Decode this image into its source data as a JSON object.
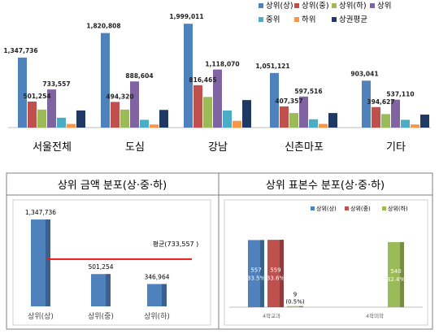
{
  "chart_data": [
    {
      "type": "bar",
      "categories": [
        "서울전체",
        "도심",
        "강남",
        "신촌마포",
        "기타"
      ],
      "series": [
        {
          "name": "상위(상)",
          "color": "#4F81BD",
          "values": [
            1347736,
            1820808,
            1999011,
            1051121,
            903041
          ]
        },
        {
          "name": "상위(중)",
          "color": "#C0504D",
          "values": [
            501254,
            494320,
            816465,
            407357,
            394627
          ]
        },
        {
          "name": "상위(하)",
          "color": "#9BBB59",
          "values": [
            346964,
            346964,
            590000,
            280000,
            260000
          ]
        },
        {
          "name": "상위",
          "color": "#8064A2",
          "values": [
            733557,
            888604,
            1118070,
            597516,
            537110
          ]
        },
        {
          "name": "중위",
          "color": "#4BACC6",
          "values": [
            190000,
            150000,
            330000,
            160000,
            150000
          ]
        },
        {
          "name": "하위",
          "color": "#F79646",
          "values": [
            70000,
            60000,
            130000,
            70000,
            60000
          ]
        },
        {
          "name": "상권평균",
          "color": "#1F3864",
          "values": [
            330000,
            340000,
            530000,
            280000,
            250000
          ]
        }
      ],
      "data_labels": {
        "상위(상)": [
          "1,347,736",
          "1,820,808",
          "1,999,011",
          "1,051,121",
          "903,041"
        ],
        "상위(중)": [
          "501,254",
          "494,320",
          "816,465",
          "407,357",
          "394,627"
        ],
        "상위": [
          "733,557",
          "888,604",
          "1,118,070",
          "597,516",
          "537,110"
        ]
      },
      "ylim": [
        0,
        2300000
      ],
      "legend": "top-right"
    },
    {
      "type": "bar",
      "title": "상위 금액 분포(상·중·하)",
      "categories": [
        "상위(상)",
        "상위(중)",
        "상위(하)"
      ],
      "values": [
        1347736,
        501254,
        346964
      ],
      "value_labels": [
        "1,347,736",
        "501,254",
        "346,964"
      ],
      "color": "#4F81BD",
      "average_line": {
        "value": 733557,
        "label": "평균(733,557 )",
        "color": "#E31A1C"
      },
      "ylim": [
        0,
        1450000
      ]
    },
    {
      "type": "bar",
      "title": "상위 표본수 분포(상·중·하)",
      "categories": [
        "4학교과",
        "4학미학"
      ],
      "series": [
        {
          "name": "상위(상)",
          "color": "#4F81BD",
          "values": [
            557,
            0
          ],
          "labels": [
            [
              "557",
              "(33.5%)"
            ],
            [
              "",
              ""
            ]
          ]
        },
        {
          "name": "상위(중)",
          "color": "#C0504D",
          "values": [
            559,
            0
          ],
          "labels": [
            [
              "559",
              "(33.6%)"
            ],
            [
              "",
              ""
            ]
          ]
        },
        {
          "name": "상위(하)",
          "color": "#9BBB59",
          "values": [
            9,
            540
          ],
          "labels": [
            [
              "9",
              "(0.5%)"
            ],
            [
              "540",
              "(32.4%)"
            ]
          ]
        }
      ],
      "ylim": [
        0,
        580
      ],
      "legend": "top"
    }
  ]
}
